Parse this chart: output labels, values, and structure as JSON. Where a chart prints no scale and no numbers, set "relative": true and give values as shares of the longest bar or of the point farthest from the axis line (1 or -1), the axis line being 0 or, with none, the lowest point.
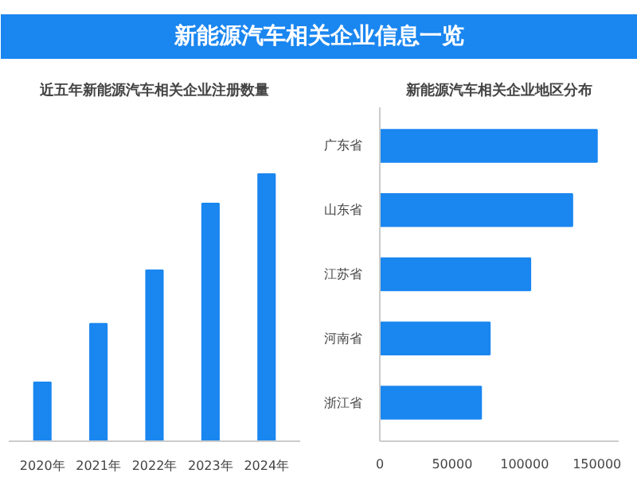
{
  "chart_data": [
    {
      "type": "other",
      "title": "新能源汽车相关企业信息一览",
      "color": "#1a86f0"
    },
    {
      "type": "bar",
      "title": "近五年新能源汽车相关企业注册数量",
      "categories": [
        "2020年",
        "2021年",
        "2022年",
        "2023年",
        "2024年"
      ],
      "values": [
        0.22,
        0.44,
        0.64,
        0.89,
        1
      ],
      "relative": true,
      "color": "#1a86f0",
      "grid": false,
      "tick_labels": "x"
    },
    {
      "type": "bar",
      "orientation": "horizontal",
      "title": "新能源汽车相关企业地区分布",
      "categories": [
        "广东省",
        "山东省",
        "江苏省",
        "河南省",
        "浙江省"
      ],
      "values": [
        150000,
        133000,
        104000,
        76000,
        70000
      ],
      "color": "#1a86f0",
      "xlim": [
        0,
        165000
      ],
      "xticks": [
        0,
        50000,
        100000,
        150000
      ],
      "grid": false
    }
  ]
}
